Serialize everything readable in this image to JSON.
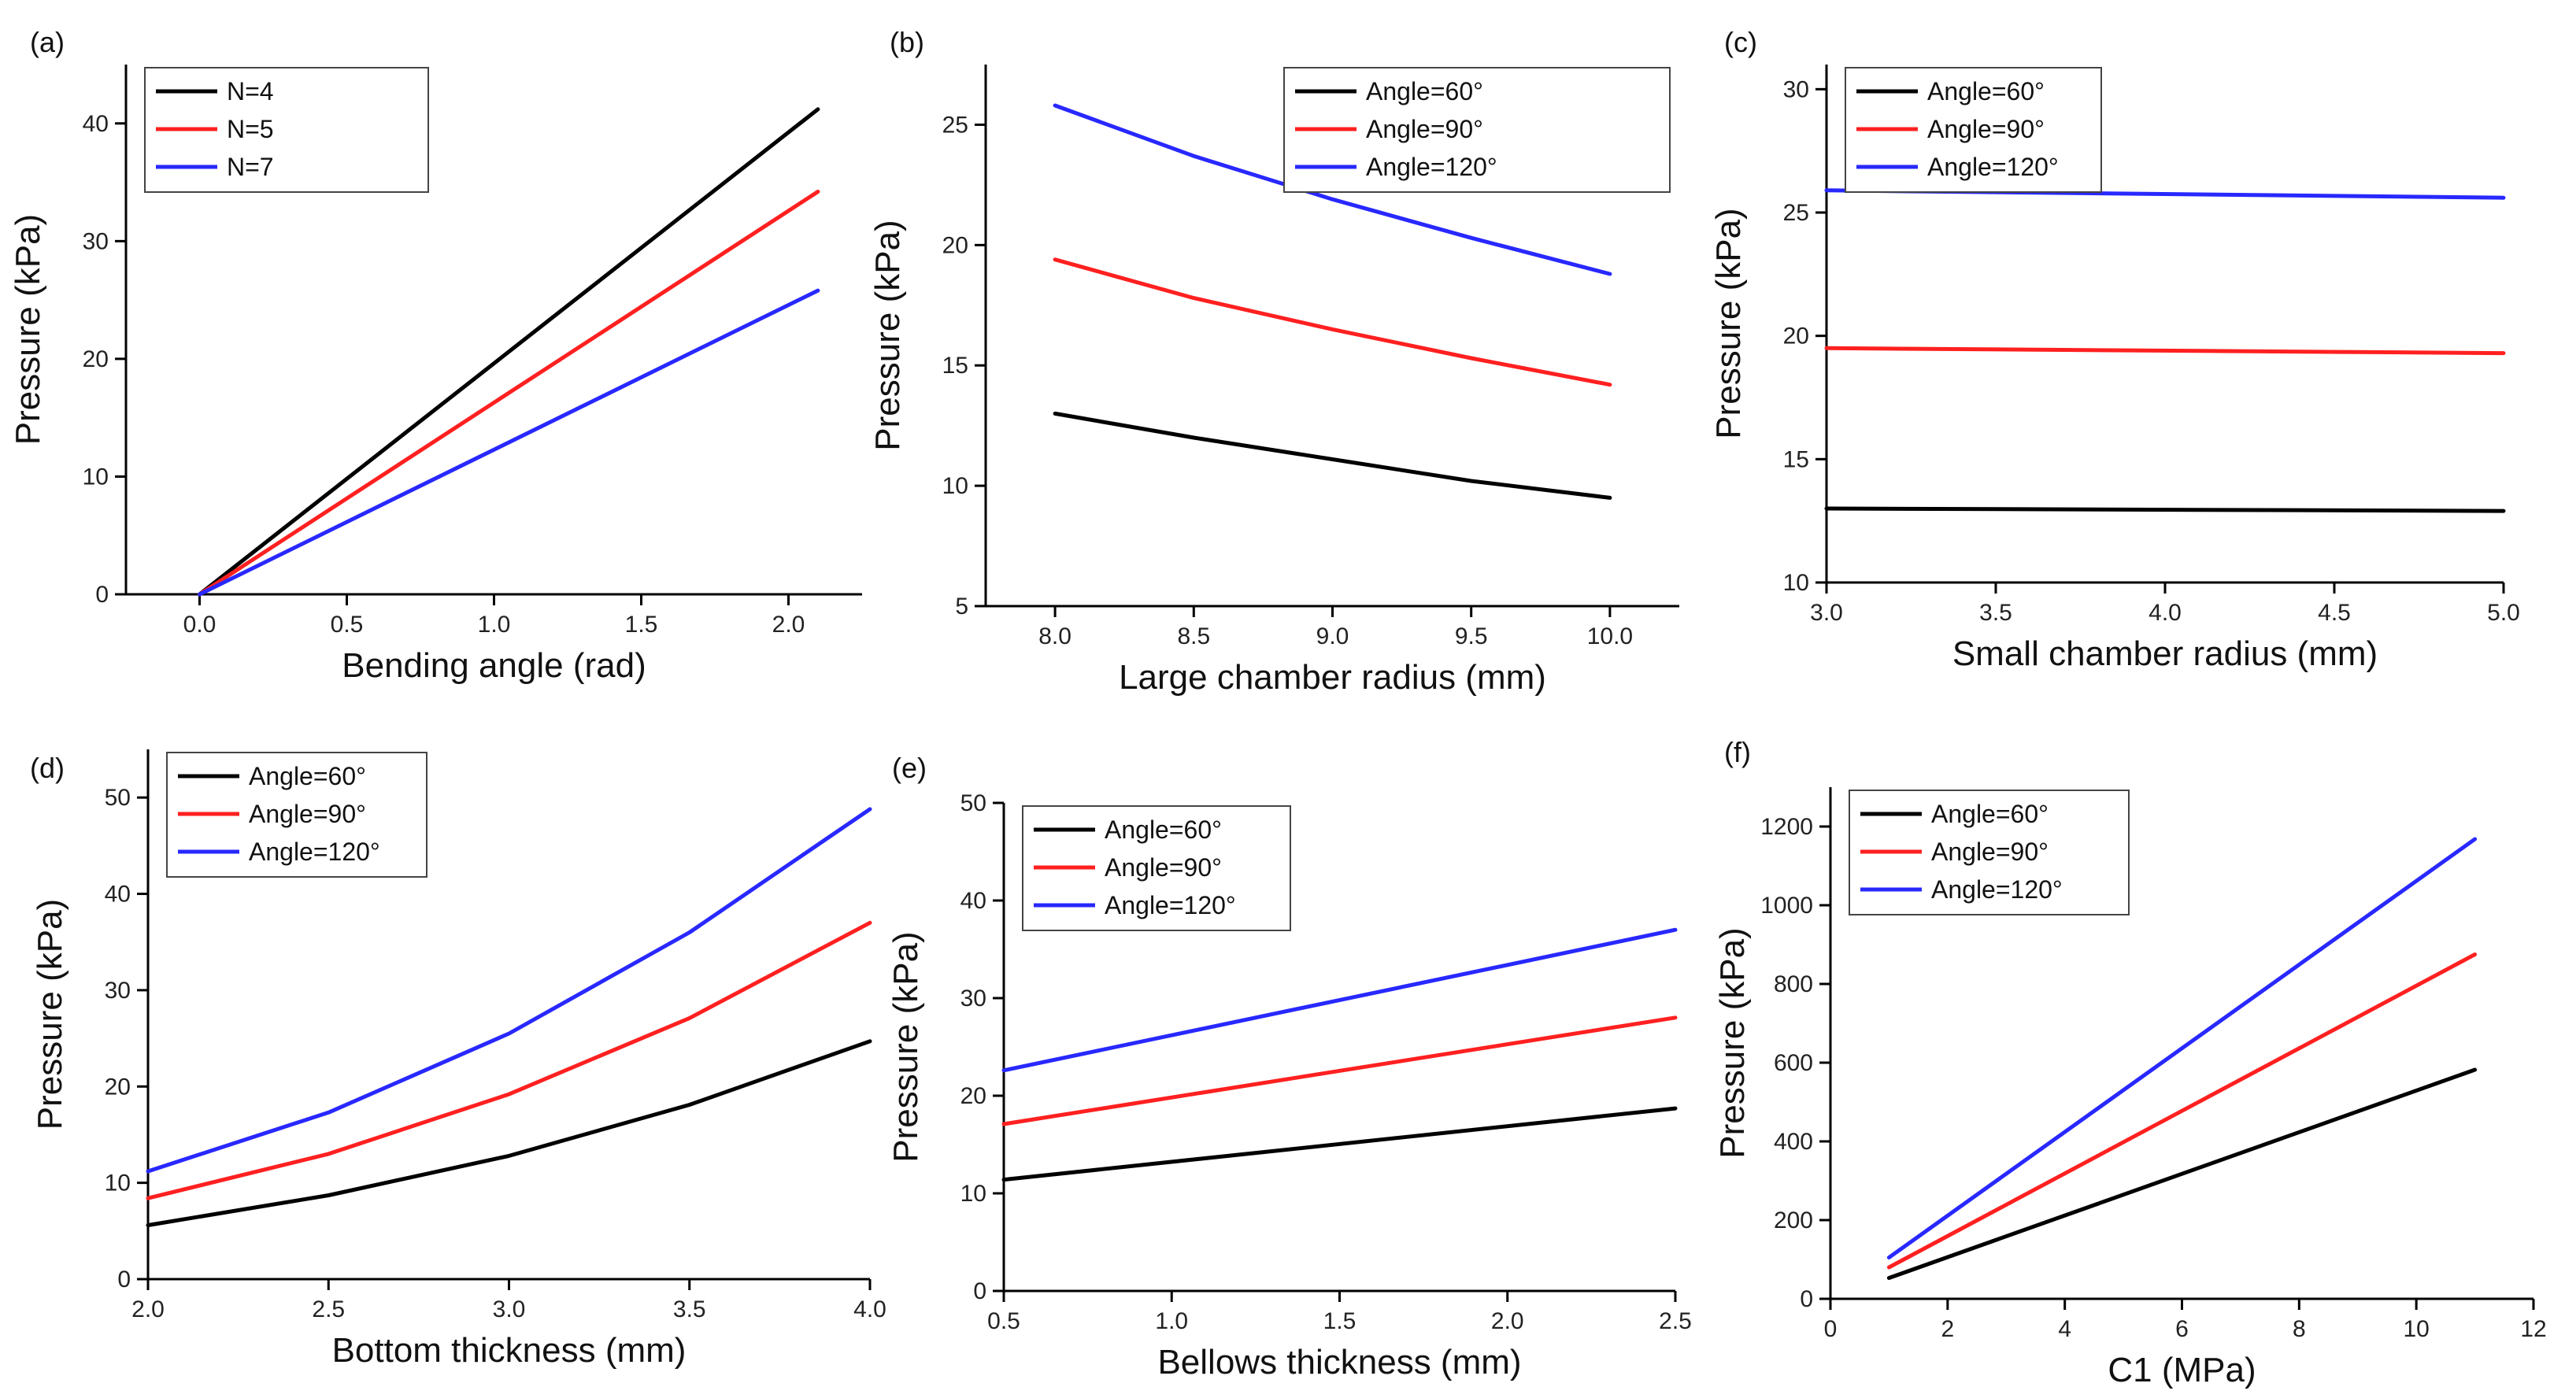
{
  "chart_data": [
    {
      "panel": "(a)",
      "type": "line",
      "xlabel": "Bending angle (rad)",
      "ylabel": "Pressure (kPa)",
      "xlim": [
        -0.25,
        2.25
      ],
      "ylim": [
        0,
        45
      ],
      "xticks": [
        0.0,
        0.5,
        1.0,
        1.5,
        2.0
      ],
      "xtick_labels": [
        "0.0",
        "0.5",
        "1.0",
        "1.5",
        "2.0"
      ],
      "yticks": [
        0,
        10,
        20,
        30,
        40
      ],
      "ytick_labels": [
        "0",
        "10",
        "20",
        "30",
        "40"
      ],
      "legend": "top-left",
      "series": [
        {
          "name": "N=4",
          "color": "#000000",
          "x": [
            0,
            2.1
          ],
          "y": [
            0,
            41.2
          ]
        },
        {
          "name": "N=5",
          "color": "#ff2020",
          "x": [
            0,
            2.1
          ],
          "y": [
            0,
            34.2
          ]
        },
        {
          "name": "N=7",
          "color": "#2828ff",
          "x": [
            0,
            2.1
          ],
          "y": [
            0,
            25.8
          ]
        }
      ]
    },
    {
      "panel": "(b)",
      "type": "line",
      "xlabel": "Large chamber radius (mm)",
      "ylabel": "Pressure (kPa)",
      "xlim": [
        7.75,
        10.25
      ],
      "ylim": [
        5,
        27.5
      ],
      "xticks": [
        8.0,
        8.5,
        9.0,
        9.5,
        10.0
      ],
      "xtick_labels": [
        "8.0",
        "8.5",
        "9.0",
        "9.5",
        "10.0"
      ],
      "yticks": [
        5,
        10,
        15,
        20,
        25
      ],
      "ytick_labels": [
        "5",
        "10",
        "15",
        "20",
        "25"
      ],
      "legend": "top-right",
      "series": [
        {
          "name": "Angle=60°",
          "color": "#000000",
          "x": [
            8.0,
            8.5,
            9.0,
            9.5,
            10.0
          ],
          "y": [
            13.0,
            12.0,
            11.1,
            10.2,
            9.5
          ]
        },
        {
          "name": "Angle=90°",
          "color": "#ff2020",
          "x": [
            8.0,
            8.5,
            9.0,
            9.5,
            10.0
          ],
          "y": [
            19.4,
            17.8,
            16.5,
            15.3,
            14.2
          ]
        },
        {
          "name": "Angle=120°",
          "color": "#2828ff",
          "x": [
            8.0,
            8.5,
            9.0,
            9.5,
            10.0
          ],
          "y": [
            25.8,
            23.7,
            21.9,
            20.3,
            18.8
          ]
        }
      ]
    },
    {
      "panel": "(c)",
      "type": "line",
      "xlabel": "Small chamber radius (mm)",
      "ylabel": "Pressure (kPa)",
      "xlim": [
        3.0,
        5.0
      ],
      "ylim": [
        10,
        31
      ],
      "xticks": [
        3.0,
        3.5,
        4.0,
        4.5,
        5.0
      ],
      "xtick_labels": [
        "3.0",
        "3.5",
        "4.0",
        "4.5",
        "5.0"
      ],
      "yticks": [
        10,
        15,
        20,
        25,
        30
      ],
      "ytick_labels": [
        "10",
        "15",
        "20",
        "25",
        "30"
      ],
      "legend": "top-left",
      "series": [
        {
          "name": "Angle=60°",
          "color": "#000000",
          "x": [
            3.0,
            5.0
          ],
          "y": [
            13.0,
            12.9
          ]
        },
        {
          "name": "Angle=90°",
          "color": "#ff2020",
          "x": [
            3.0,
            5.0
          ],
          "y": [
            19.5,
            19.3
          ]
        },
        {
          "name": "Angle=120°",
          "color": "#2828ff",
          "x": [
            3.0,
            5.0
          ],
          "y": [
            25.9,
            25.6
          ]
        }
      ]
    },
    {
      "panel": "(d)",
      "type": "line",
      "xlabel": "Bottom thickness (mm)",
      "ylabel": "Pressure (kPa)",
      "xlim": [
        2.0,
        4.0
      ],
      "ylim": [
        0,
        55
      ],
      "xticks": [
        2.0,
        2.5,
        3.0,
        3.5,
        4.0
      ],
      "xtick_labels": [
        "2.0",
        "2.5",
        "3.0",
        "3.5",
        "4.0"
      ],
      "yticks": [
        0,
        10,
        20,
        30,
        40,
        50
      ],
      "ytick_labels": [
        "0",
        "10",
        "20",
        "30",
        "40",
        "50"
      ],
      "legend": "top-left",
      "series": [
        {
          "name": "Angle=60°",
          "color": "#000000",
          "x": [
            2.0,
            2.5,
            3.0,
            3.5,
            4.0
          ],
          "y": [
            5.6,
            8.7,
            12.8,
            18.1,
            24.7
          ]
        },
        {
          "name": "Angle=90°",
          "color": "#ff2020",
          "x": [
            2.0,
            2.5,
            3.0,
            3.5,
            4.0
          ],
          "y": [
            8.4,
            13.0,
            19.2,
            27.1,
            37.0
          ]
        },
        {
          "name": "Angle=120°",
          "color": "#2828ff",
          "x": [
            2.0,
            2.5,
            3.0,
            3.5,
            4.0
          ],
          "y": [
            11.2,
            17.3,
            25.5,
            36.0,
            48.8
          ]
        }
      ]
    },
    {
      "panel": "(e)",
      "type": "line",
      "xlabel": "Bellows thickness (mm)",
      "ylabel": "Pressure (kPa)",
      "xlim": [
        0.5,
        2.5
      ],
      "ylim": [
        0,
        50
      ],
      "xticks": [
        0.5,
        1.0,
        1.5,
        2.0,
        2.5
      ],
      "xtick_labels": [
        "0.5",
        "1.0",
        "1.5",
        "2.0",
        "2.5"
      ],
      "yticks": [
        0,
        10,
        20,
        30,
        40,
        50
      ],
      "ytick_labels": [
        "0",
        "10",
        "20",
        "30",
        "40",
        "50"
      ],
      "legend": "top-left",
      "series": [
        {
          "name": "Angle=60°",
          "color": "#000000",
          "x": [
            0.5,
            2.5
          ],
          "y": [
            11.4,
            18.7
          ]
        },
        {
          "name": "Angle=90°",
          "color": "#ff2020",
          "x": [
            0.5,
            2.5
          ],
          "y": [
            17.1,
            28.0
          ]
        },
        {
          "name": "Angle=120°",
          "color": "#2828ff",
          "x": [
            0.5,
            2.5
          ],
          "y": [
            22.6,
            37.0
          ]
        }
      ]
    },
    {
      "panel": "(f)",
      "type": "line",
      "xlabel": "C1 (MPa)",
      "ylabel": "Pressure (kPa)",
      "xlim": [
        0,
        12
      ],
      "ylim": [
        0,
        1300
      ],
      "xticks": [
        0,
        2,
        4,
        6,
        8,
        10,
        12
      ],
      "xtick_labels": [
        "0",
        "2",
        "4",
        "6",
        "8",
        "10",
        "12"
      ],
      "yticks": [
        0,
        200,
        400,
        600,
        800,
        1000,
        1200
      ],
      "ytick_labels": [
        "0",
        "200",
        "400",
        "600",
        "800",
        "1000",
        "1200"
      ],
      "legend": "top-left",
      "series": [
        {
          "name": "Angle=60°",
          "color": "#000000",
          "x": [
            1,
            11
          ],
          "y": [
            53,
            582
          ]
        },
        {
          "name": "Angle=90°",
          "color": "#ff2020",
          "x": [
            1,
            11
          ],
          "y": [
            80,
            875
          ]
        },
        {
          "name": "Angle=120°",
          "color": "#2828ff",
          "x": [
            1,
            11
          ],
          "y": [
            105,
            1168
          ]
        }
      ]
    }
  ]
}
